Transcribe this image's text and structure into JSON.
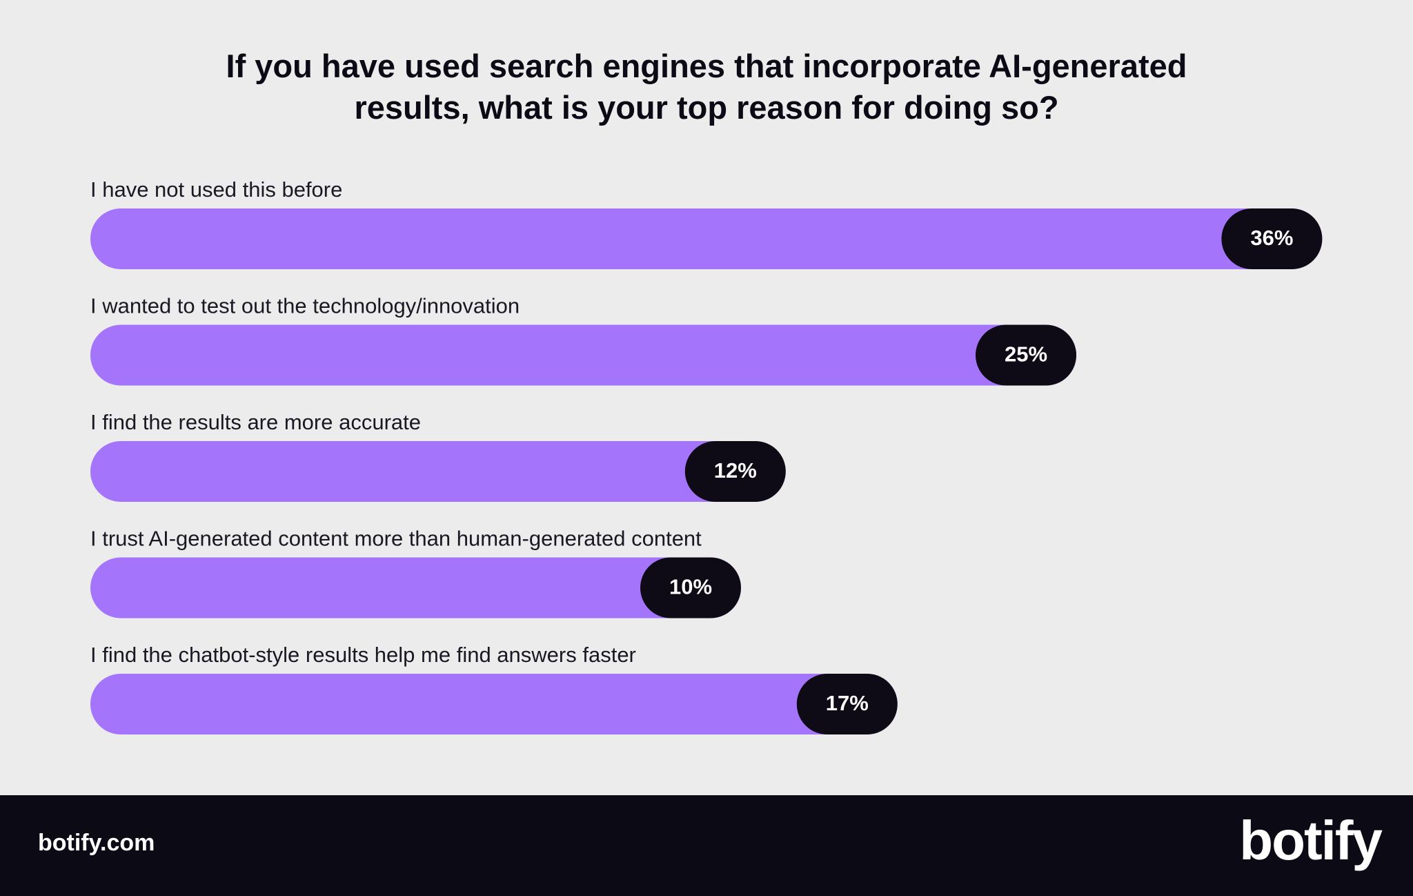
{
  "chart_data": {
    "type": "bar",
    "orientation": "horizontal",
    "title": "If you have used search engines that incorporate AI-generated results, what is your top reason for doing so?",
    "categories": [
      "I have not used this before",
      "I wanted to test out the technology/innovation",
      "I find the results are more accurate",
      "I trust AI-generated content more than human-generated content",
      "I find the chatbot-style results help me find answers faster"
    ],
    "values": [
      36,
      25,
      12,
      10,
      17
    ],
    "value_labels": [
      "36%",
      "25%",
      "12%",
      "10%",
      "17%"
    ],
    "color": "#a475fb"
  },
  "footer": {
    "site": "botify.com",
    "logo": "botify"
  }
}
